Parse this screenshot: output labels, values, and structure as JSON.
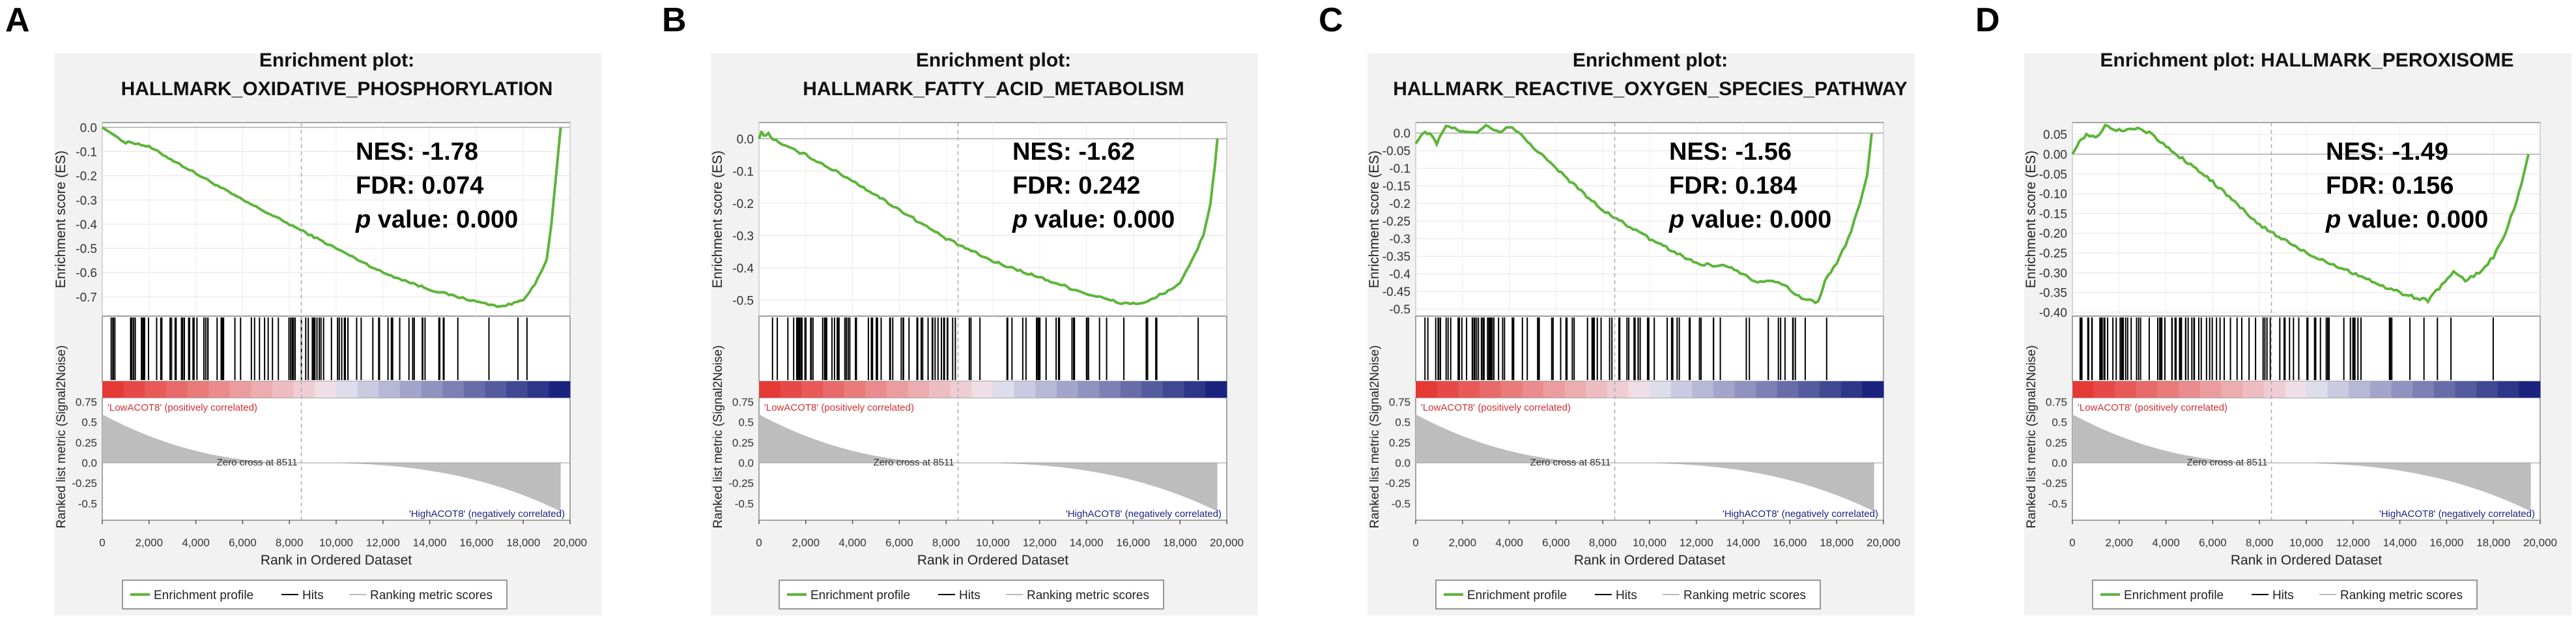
{
  "figure": {
    "x_axis_label": "Rank in Ordered Dataset",
    "es_axis_label": "Enrichment score (ES)",
    "metric_axis_label": "Ranked list metric (Signal2Noise)",
    "x_ticks": [
      "0",
      "2,000",
      "4,000",
      "6,000",
      "8,000",
      "10,000",
      "12,000",
      "14,000",
      "16,000",
      "18,000",
      "20,000"
    ],
    "metric_ticks": [
      "0.75",
      "0.5",
      "0.25",
      "0.0",
      "-0.25",
      "-0.5"
    ],
    "zero_cross_label": "Zero cross at 8511",
    "pos_label": "'LowACOT8' (positively correlated)",
    "neg_label": "'HighACOT8' (negatively correlated)",
    "legend": [
      "Enrichment profile",
      "Hits",
      "Ranking metric scores"
    ],
    "colors": {
      "profile": "#5db53a",
      "panel": "#f2f2f2",
      "hits": "#000000",
      "metric": "#bdbdbd",
      "pos": "#e53935",
      "neg": "#1a237e"
    }
  },
  "chart_data": [
    {
      "panel_letter": "A",
      "type": "line",
      "title": [
        "Enrichment plot:",
        "HALLMARK_OXIDATIVE_PHOSPHORYLATION"
      ],
      "es_ticks": [
        "0.0",
        "-0.1",
        "-0.2",
        "-0.3",
        "-0.4",
        "-0.5",
        "-0.6",
        "-0.7"
      ],
      "ylim": [
        -0.78,
        0.02
      ],
      "stats": {
        "nes": "NES: -1.78",
        "fdr": "FDR: 0.074",
        "p_prefix": "p",
        "p_rest": " value: 0.000"
      },
      "profile": [
        [
          0,
          0
        ],
        [
          800,
          -0.05
        ],
        [
          1000,
          -0.065
        ],
        [
          1200,
          -0.06
        ],
        [
          2000,
          -0.08
        ],
        [
          4000,
          -0.19
        ],
        [
          6000,
          -0.3
        ],
        [
          8000,
          -0.4
        ],
        [
          10000,
          -0.5
        ],
        [
          12000,
          -0.6
        ],
        [
          14000,
          -0.67
        ],
        [
          16000,
          -0.72
        ],
        [
          17000,
          -0.74
        ],
        [
          17500,
          -0.73
        ],
        [
          18000,
          -0.71
        ],
        [
          18500,
          -0.65
        ],
        [
          19000,
          -0.55
        ],
        [
          19200,
          -0.4
        ],
        [
          19400,
          -0.2
        ],
        [
          19600,
          0
        ]
      ],
      "x": {
        "min": 0,
        "max": 20000
      },
      "zero_cross": 8511
    },
    {
      "panel_letter": "B",
      "type": "line",
      "title": [
        "Enrichment plot:",
        "HALLMARK_FATTY_ACID_METABOLISM"
      ],
      "es_ticks": [
        "0.0",
        "-0.1",
        "-0.2",
        "-0.3",
        "-0.4",
        "-0.5"
      ],
      "ylim": [
        -0.55,
        0.05
      ],
      "stats": {
        "nes": "NES: -1.62",
        "fdr": "FDR: 0.242",
        "p_prefix": "p",
        "p_rest": " value: 0.000"
      },
      "profile": [
        [
          0,
          0.0
        ],
        [
          100,
          0.02
        ],
        [
          200,
          0.01
        ],
        [
          400,
          0.015
        ],
        [
          600,
          0.0
        ],
        [
          1000,
          -0.02
        ],
        [
          2000,
          -0.05
        ],
        [
          4000,
          -0.13
        ],
        [
          6000,
          -0.22
        ],
        [
          8000,
          -0.31
        ],
        [
          10000,
          -0.38
        ],
        [
          12000,
          -0.43
        ],
        [
          14000,
          -0.48
        ],
        [
          15500,
          -0.51
        ],
        [
          16500,
          -0.51
        ],
        [
          17000,
          -0.49
        ],
        [
          18000,
          -0.45
        ],
        [
          18500,
          -0.38
        ],
        [
          19000,
          -0.3
        ],
        [
          19300,
          -0.2
        ],
        [
          19500,
          -0.08
        ],
        [
          19600,
          0
        ]
      ],
      "x": {
        "min": 0,
        "max": 20000
      },
      "zero_cross": 8511
    },
    {
      "panel_letter": "C",
      "type": "line",
      "title": [
        "Enrichment plot:",
        "HALLMARK_REACTIVE_OXYGEN_SPECIES_PATHWAY"
      ],
      "es_ticks": [
        "0.0",
        "-0.05",
        "-0.1",
        "-0.15",
        "-0.2",
        "-0.25",
        "-0.3",
        "-0.35",
        "-0.4",
        "-0.45",
        "-0.5"
      ],
      "ylim": [
        -0.52,
        0.03
      ],
      "stats": {
        "nes": "NES: -1.56",
        "fdr": "FDR: 0.184",
        "p_prefix": "p",
        "p_rest": " value: 0.000"
      },
      "profile": [
        [
          0,
          -0.03
        ],
        [
          300,
          0.0
        ],
        [
          600,
          0.0
        ],
        [
          900,
          -0.03
        ],
        [
          1300,
          0.02
        ],
        [
          1800,
          0.01
        ],
        [
          2600,
          0.0
        ],
        [
          3000,
          0.02
        ],
        [
          3600,
          0.0
        ],
        [
          4000,
          0.02
        ],
        [
          4400,
          0.0
        ],
        [
          6000,
          -0.1
        ],
        [
          8000,
          -0.22
        ],
        [
          10000,
          -0.3
        ],
        [
          12000,
          -0.37
        ],
        [
          13500,
          -0.38
        ],
        [
          14500,
          -0.42
        ],
        [
          15500,
          -0.42
        ],
        [
          16500,
          -0.47
        ],
        [
          17200,
          -0.48
        ],
        [
          17500,
          -0.42
        ],
        [
          18000,
          -0.37
        ],
        [
          18500,
          -0.3
        ],
        [
          19000,
          -0.2
        ],
        [
          19300,
          -0.12
        ],
        [
          19500,
          0
        ]
      ],
      "x": {
        "min": 0,
        "max": 20000
      },
      "zero_cross": 8511
    },
    {
      "panel_letter": "D",
      "type": "line",
      "title": [
        "Enrichment plot: HALLMARK_PEROXISOME"
      ],
      "es_ticks": [
        "0.05",
        "0.00",
        "-0.05",
        "-0.10",
        "-0.15",
        "-0.20",
        "-0.25",
        "-0.30",
        "-0.35",
        "-0.40"
      ],
      "ylim": [
        -0.41,
        0.08
      ],
      "stats": {
        "nes": "NES: -1.49",
        "fdr": "FDR: 0.156",
        "p_prefix": "p",
        "p_rest": " value: 0.000"
      },
      "profile": [
        [
          0,
          0.0
        ],
        [
          300,
          0.03
        ],
        [
          600,
          0.05
        ],
        [
          1000,
          0.04
        ],
        [
          1400,
          0.07
        ],
        [
          2000,
          0.06
        ],
        [
          2800,
          0.065
        ],
        [
          3400,
          0.05
        ],
        [
          4000,
          0.02
        ],
        [
          6000,
          -0.07
        ],
        [
          8000,
          -0.18
        ],
        [
          10000,
          -0.25
        ],
        [
          12000,
          -0.3
        ],
        [
          13500,
          -0.34
        ],
        [
          14500,
          -0.36
        ],
        [
          15200,
          -0.37
        ],
        [
          15800,
          -0.33
        ],
        [
          16300,
          -0.3
        ],
        [
          16800,
          -0.32
        ],
        [
          17400,
          -0.3
        ],
        [
          18000,
          -0.26
        ],
        [
          18500,
          -0.2
        ],
        [
          19000,
          -0.12
        ],
        [
          19300,
          -0.05
        ],
        [
          19500,
          0
        ]
      ],
      "x": {
        "min": 0,
        "max": 20000
      },
      "zero_cross": 8511
    }
  ]
}
